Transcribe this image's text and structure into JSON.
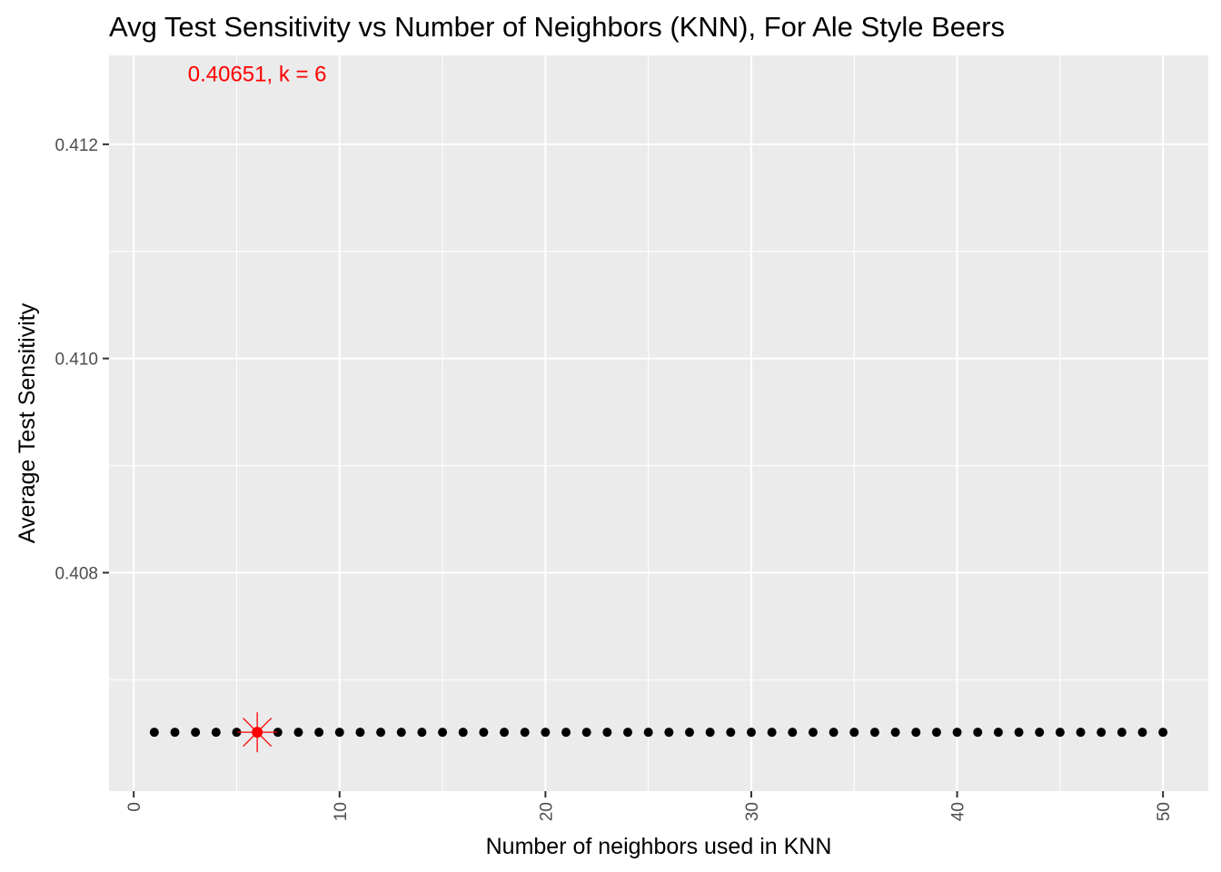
{
  "chart_data": {
    "type": "scatter",
    "title": "Avg Test Sensitivity vs Number of Neighbors (KNN), For Ale Style Beers",
    "xlabel": "Number of neighbors used in KNN",
    "ylabel": "Average Test Sensitivity",
    "xlim": [
      -1.2,
      52.2
    ],
    "ylim": [
      0.40596,
      0.41283
    ],
    "x_ticks": [
      0,
      10,
      20,
      30,
      40,
      50
    ],
    "x_tick_labels": [
      "0",
      "10",
      "20",
      "30",
      "40",
      "50"
    ],
    "y_ticks": [
      0.408,
      0.41,
      0.412
    ],
    "y_tick_labels": [
      "0.408",
      "0.410",
      "0.412"
    ],
    "x_minor_ticks": [
      5,
      15,
      25,
      35,
      45
    ],
    "y_minor_ticks": [
      0.407,
      0.409,
      0.411
    ],
    "grid": true,
    "background": "#ebebeb",
    "x_tick_rotation": "vertical",
    "series": [
      {
        "color": "#000000",
        "x": [
          1,
          2,
          3,
          4,
          5,
          6,
          7,
          8,
          9,
          10,
          11,
          12,
          13,
          14,
          15,
          16,
          17,
          18,
          19,
          20,
          21,
          22,
          23,
          24,
          25,
          26,
          27,
          28,
          29,
          30,
          31,
          32,
          33,
          34,
          35,
          36,
          37,
          38,
          39,
          40,
          41,
          42,
          43,
          44,
          45,
          46,
          47,
          48,
          49,
          50
        ],
        "y": [
          0.40651,
          0.40651,
          0.40651,
          0.40651,
          0.40651,
          0.40651,
          0.40651,
          0.40651,
          0.40651,
          0.40651,
          0.40651,
          0.40651,
          0.40651,
          0.40651,
          0.40651,
          0.40651,
          0.40651,
          0.40651,
          0.40651,
          0.40651,
          0.40651,
          0.40651,
          0.40651,
          0.40651,
          0.40651,
          0.40651,
          0.40651,
          0.40651,
          0.40651,
          0.40651,
          0.40651,
          0.40651,
          0.40651,
          0.40651,
          0.40651,
          0.40651,
          0.40651,
          0.40651,
          0.40651,
          0.40651,
          0.40651,
          0.40651,
          0.40651,
          0.40651,
          0.40651,
          0.40651,
          0.40651,
          0.40651,
          0.40651,
          0.40651
        ]
      }
    ],
    "highlight": {
      "x": 6,
      "y": 0.40651,
      "color": "#ff0000",
      "marker": "star"
    },
    "annotation": {
      "text": "0.40651, k = 6",
      "x": 6,
      "y": 0.41259,
      "color": "#ff0000"
    }
  }
}
